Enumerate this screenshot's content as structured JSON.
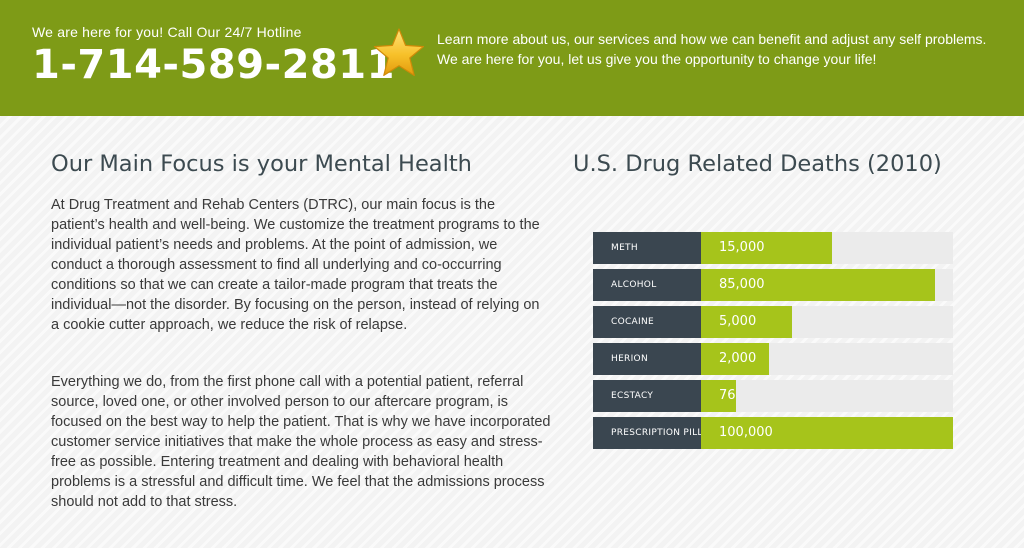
{
  "header": {
    "hotline_label": "We are here for you! Call Our 24/7 Hotline",
    "phone": "1-714-589-2811",
    "star_icon": "star-icon",
    "blurb": "Learn more about us, our services and how we can benefit and adjust any self problems. We are here for you, let us give you the opportunity to change your life!",
    "bar_color": "#7e9b17"
  },
  "main": {
    "title": "Our Main Focus is your Mental Health",
    "paragraph1": "At Drug Treatment and Rehab Centers (DTRC), our main focus is the patient’s health and well-being. We customize the treatment programs to the individual patient’s needs and problems. At the point of admission, we conduct a thorough assessment to find all underlying and co-occurring conditions so that we can create a tailor-made program that treats the individual—not the disorder. By focusing on the person, instead of relying on a cookie cutter approach, we reduce the risk of relapse.",
    "paragraph2": "Everything we do, from the first phone call with a potential patient, referral source, loved one, or other involved person to our aftercare program, is focused on the best way to help the patient. That is why we have incorporated customer service initiatives that make the whole process as easy and stress-free as possible. Entering treatment and dealing with behavioral health problems is a stressful and difficult time. We feel that the admissions process should not add to that stress."
  },
  "chart_data": {
    "type": "bar",
    "title": "U.S. Drug Related Deaths (2010)",
    "categories": [
      "METH",
      "ALCOHOL",
      "COCAINE",
      "HERION",
      "ECSTACY",
      "PRESCRIPTION PILLS"
    ],
    "value_labels": [
      "15,000",
      "85,000",
      "5,000",
      "2,000",
      "76",
      "100,000"
    ],
    "values": [
      15000,
      85000,
      5000,
      2000,
      76,
      100000
    ],
    "fill_fraction": [
      0.52,
      0.93,
      0.36,
      0.27,
      0.14,
      1.0
    ],
    "colors": {
      "label_bg": "#3a4650",
      "fill": "#a6c41b",
      "track": "#ebebeb"
    },
    "orientation": "horizontal"
  }
}
